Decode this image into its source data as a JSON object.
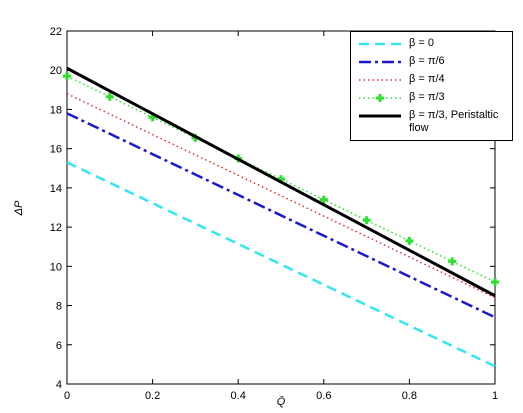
{
  "chart_data": {
    "type": "line",
    "x_label": "Q̄",
    "y_label": "ΔP",
    "xlim": [
      0,
      1
    ],
    "ylim": [
      4,
      22
    ],
    "xticks": [
      0,
      0.2,
      0.4,
      0.6,
      0.8,
      1
    ],
    "yticks": [
      4,
      6,
      8,
      10,
      12,
      14,
      16,
      18,
      20,
      22
    ],
    "legend": "upper right",
    "series": [
      {
        "name": "β = 0",
        "color": "#33e6f0",
        "dash": "10,6",
        "width": 2.5,
        "x": [
          0,
          1
        ],
        "values": [
          15.3,
          4.9
        ]
      },
      {
        "name": "β = π/6",
        "color": "#1a1acc",
        "dash": "12,4,3,4",
        "width": 2.5,
        "x": [
          0,
          1
        ],
        "values": [
          17.8,
          7.4
        ]
      },
      {
        "name": "β = π/4",
        "color": "#e03030",
        "dash": "1.5,3",
        "width": 1.5,
        "x": [
          0,
          1
        ],
        "values": [
          18.8,
          8.4
        ]
      },
      {
        "name": "β = π/3",
        "color": "#2ee02e",
        "dash": "1.5,3",
        "width": 1.5,
        "marker": "plus",
        "x": [
          0,
          0.1,
          0.2,
          0.3,
          0.4,
          0.5,
          0.6,
          0.7,
          0.8,
          0.9,
          1
        ],
        "values": [
          19.7,
          18.65,
          17.6,
          16.55,
          15.5,
          14.45,
          13.4,
          12.35,
          11.3,
          10.25,
          9.2
        ]
      },
      {
        "name": "β = π/3, Peristaltic flow",
        "color": "#000000",
        "dash": "",
        "width": 3,
        "x": [
          0,
          1
        ],
        "values": [
          20.1,
          8.5
        ]
      }
    ]
  }
}
